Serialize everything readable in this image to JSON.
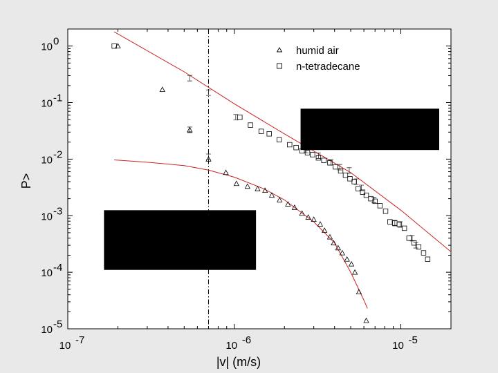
{
  "chart_data": {
    "type": "scatter",
    "xlabel": "|v| (m/s)",
    "ylabel": "P>",
    "xscale": "log",
    "yscale": "log",
    "xlim": [
      1e-07,
      2e-05
    ],
    "ylim": [
      1e-05,
      2.0
    ],
    "x_ticks": [
      {
        "value": 1e-07,
        "base": "10",
        "exp": "-7"
      },
      {
        "value": 1e-06,
        "base": "10",
        "exp": "-6"
      },
      {
        "value": 1e-05,
        "base": "10",
        "exp": "-5"
      }
    ],
    "y_ticks": [
      {
        "value": 1,
        "base": "10",
        "exp": "0"
      },
      {
        "value": 0.1,
        "base": "10",
        "exp": "-1"
      },
      {
        "value": 0.01,
        "base": "10",
        "exp": "-2"
      },
      {
        "value": 0.001,
        "base": "10",
        "exp": "-3"
      },
      {
        "value": 0.0001,
        "base": "10",
        "exp": "-4"
      },
      {
        "value": 1e-05,
        "base": "10",
        "exp": "-5"
      }
    ],
    "legend_position": "top-right",
    "grid": false,
    "vertical_reference_x": 7e-07,
    "series": [
      {
        "name": "humid air",
        "marker": "triangle",
        "color": "#000000",
        "x": [
          2e-07,
          3.7e-07,
          5.4e-07,
          7e-07,
          8.9e-07,
          1.03e-06,
          1.2e-06,
          1.38e-06,
          1.53e-06,
          1.68e-06,
          1.87e-06,
          2.1e-06,
          2.3e-06,
          2.55e-06,
          2.78e-06,
          3e-06,
          3.28e-06,
          3.48e-06,
          3.75e-06,
          3.95e-06,
          4.2e-06,
          4.45e-06,
          4.75e-06,
          5.05e-06,
          5.3e-06,
          5.6e-06,
          6.2e-06
        ],
        "y": [
          1.0,
          0.17,
          0.033,
          0.01,
          0.0058,
          0.0037,
          0.0033,
          0.003,
          0.0028,
          0.0023,
          0.0019,
          0.0016,
          0.0014,
          0.0011,
          0.00094,
          0.00086,
          0.00071,
          0.00055,
          0.00042,
          0.00033,
          0.00027,
          0.00022,
          0.00017,
          0.00014,
          0.0001,
          4.5e-05,
          1.4e-05
        ]
      },
      {
        "name": "n-tetradecane",
        "marker": "square",
        "color": "#000000",
        "x": [
          1.9e-07,
          1.08e-06,
          1.25e-06,
          1.45e-06,
          1.62e-06,
          1.86e-06,
          2.15e-06,
          2.35e-06,
          2.55e-06,
          2.75e-06,
          2.95e-06,
          3.2e-06,
          3.45e-06,
          3.75e-06,
          4.05e-06,
          4.35e-06,
          4.65e-06,
          4.95e-06,
          5.25e-06,
          5.55e-06,
          5.9e-06,
          6.2e-06,
          6.6e-06,
          7e-06,
          7.5e-06,
          8.1e-06,
          8.6e-06,
          9.2e-06,
          9.8e-06,
          1.05e-05,
          1.12e-05,
          1.2e-05,
          1.28e-05,
          1.37e-05,
          1.45e-05
        ],
        "y": [
          1.0,
          0.055,
          0.04,
          0.031,
          0.028,
          0.022,
          0.018,
          0.016,
          0.014,
          0.013,
          0.012,
          0.0105,
          0.0095,
          0.0086,
          0.0073,
          0.0062,
          0.0052,
          0.0045,
          0.004,
          0.003,
          0.0026,
          0.0023,
          0.002,
          0.0018,
          0.0015,
          0.0012,
          0.00078,
          0.00074,
          0.0007,
          0.0006,
          0.0004,
          0.00033,
          0.00028,
          0.00022,
          0.00017
        ]
      }
    ],
    "error_bars": [
      {
        "x": 5.4e-07,
        "y": 0.27
      },
      {
        "x": 7e-07,
        "y": 0.15
      },
      {
        "x": 5.4e-07,
        "y": 0.033
      },
      {
        "x": 7e-07,
        "y": 0.011
      },
      {
        "x": 1.02e-06,
        "y": 0.055
      },
      {
        "x": 2.7e-06,
        "y": 0.0145
      },
      {
        "x": 3.2e-06,
        "y": 0.0115
      },
      {
        "x": 3.8e-06,
        "y": 0.0088
      },
      {
        "x": 4.3e-06,
        "y": 0.0072
      },
      {
        "x": 4.9e-06,
        "y": 0.0063
      },
      {
        "x": 5.4e-06,
        "y": 0.004
      },
      {
        "x": 5.8e-06,
        "y": 0.0031
      },
      {
        "x": 6.9e-06,
        "y": 0.0019
      },
      {
        "x": 9.2e-06,
        "y": 0.00074
      },
      {
        "x": 9.9e-06,
        "y": 0.0007
      },
      {
        "x": 1.17e-05,
        "y": 0.0004
      },
      {
        "x": 1.23e-05,
        "y": 0.0003
      }
    ],
    "fits": [
      {
        "for": "n-tetradecane",
        "color": "#cc2222",
        "x": [
          1.9e-07,
          5e-07,
          1e-06,
          2e-06,
          5e-06,
          1e-05,
          2e-05
        ],
        "y": [
          1.78,
          0.35,
          0.095,
          0.028,
          0.0058,
          0.00125,
          0.00023
        ]
      },
      {
        "for": "humid air",
        "color": "#cc2222",
        "x": [
          1.9e-07,
          3e-07,
          5e-07,
          7e-07,
          1e-06,
          1.5e-06,
          2e-06,
          3e-06,
          4e-06,
          5e-06,
          6e-06,
          6.3e-06
        ],
        "y": [
          0.0097,
          0.0088,
          0.0077,
          0.0064,
          0.0048,
          0.003,
          0.0019,
          0.00078,
          0.00033,
          0.0001,
          3.2e-05,
          2.3e-05
        ]
      }
    ],
    "redactions": [
      {
        "x0": 2.5e-06,
        "x1": 1.7e-05,
        "y0": 0.0145,
        "y1": 0.078
      },
      {
        "x0": 1.65e-07,
        "x1": 1.35e-06,
        "y0": 0.00011,
        "y1": 0.00125
      }
    ]
  }
}
